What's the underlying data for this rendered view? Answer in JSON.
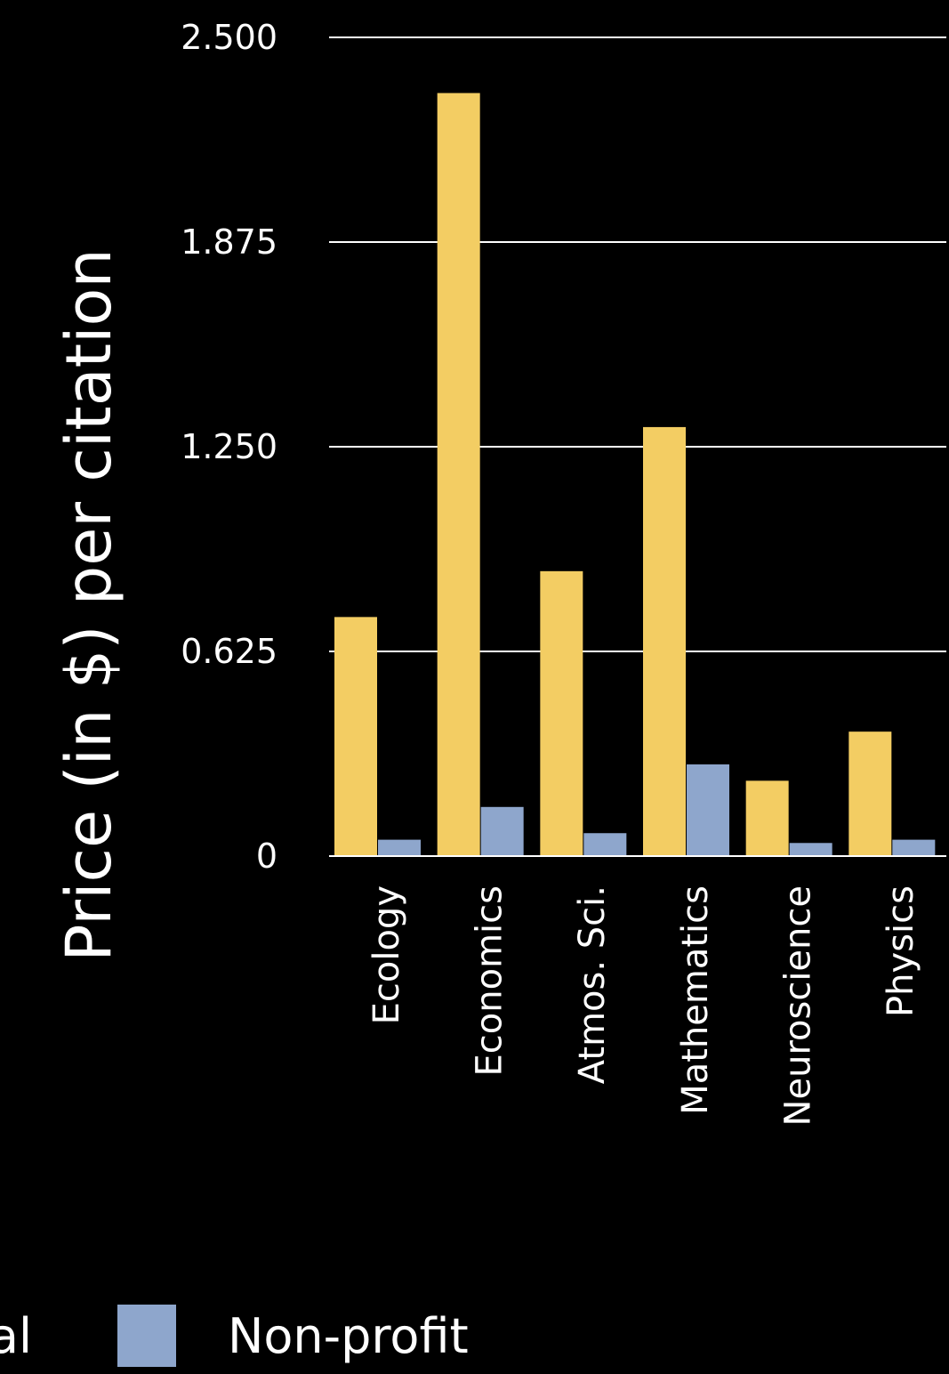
{
  "chart_data": {
    "type": "bar",
    "ylabel": "Price (in $) per citation",
    "xlabel": "",
    "categories": [
      "Ecology",
      "Economics",
      "Atmos. Sci.",
      "Mathematics",
      "Neuroscience",
      "Physics"
    ],
    "series": [
      {
        "name": "Commercial",
        "color": "#f3cd63",
        "values": [
          0.73,
          2.33,
          0.87,
          1.31,
          0.23,
          0.38
        ]
      },
      {
        "name": "Non-profit",
        "color": "#8ea6cc",
        "values": [
          0.05,
          0.15,
          0.07,
          0.28,
          0.04,
          0.05
        ]
      }
    ],
    "yticks": [
      "0",
      "0.625",
      "1.250",
      "1.875",
      "2.500"
    ],
    "ylim": [
      0,
      2.5
    ],
    "grid": true,
    "legend_position": "bottom"
  }
}
